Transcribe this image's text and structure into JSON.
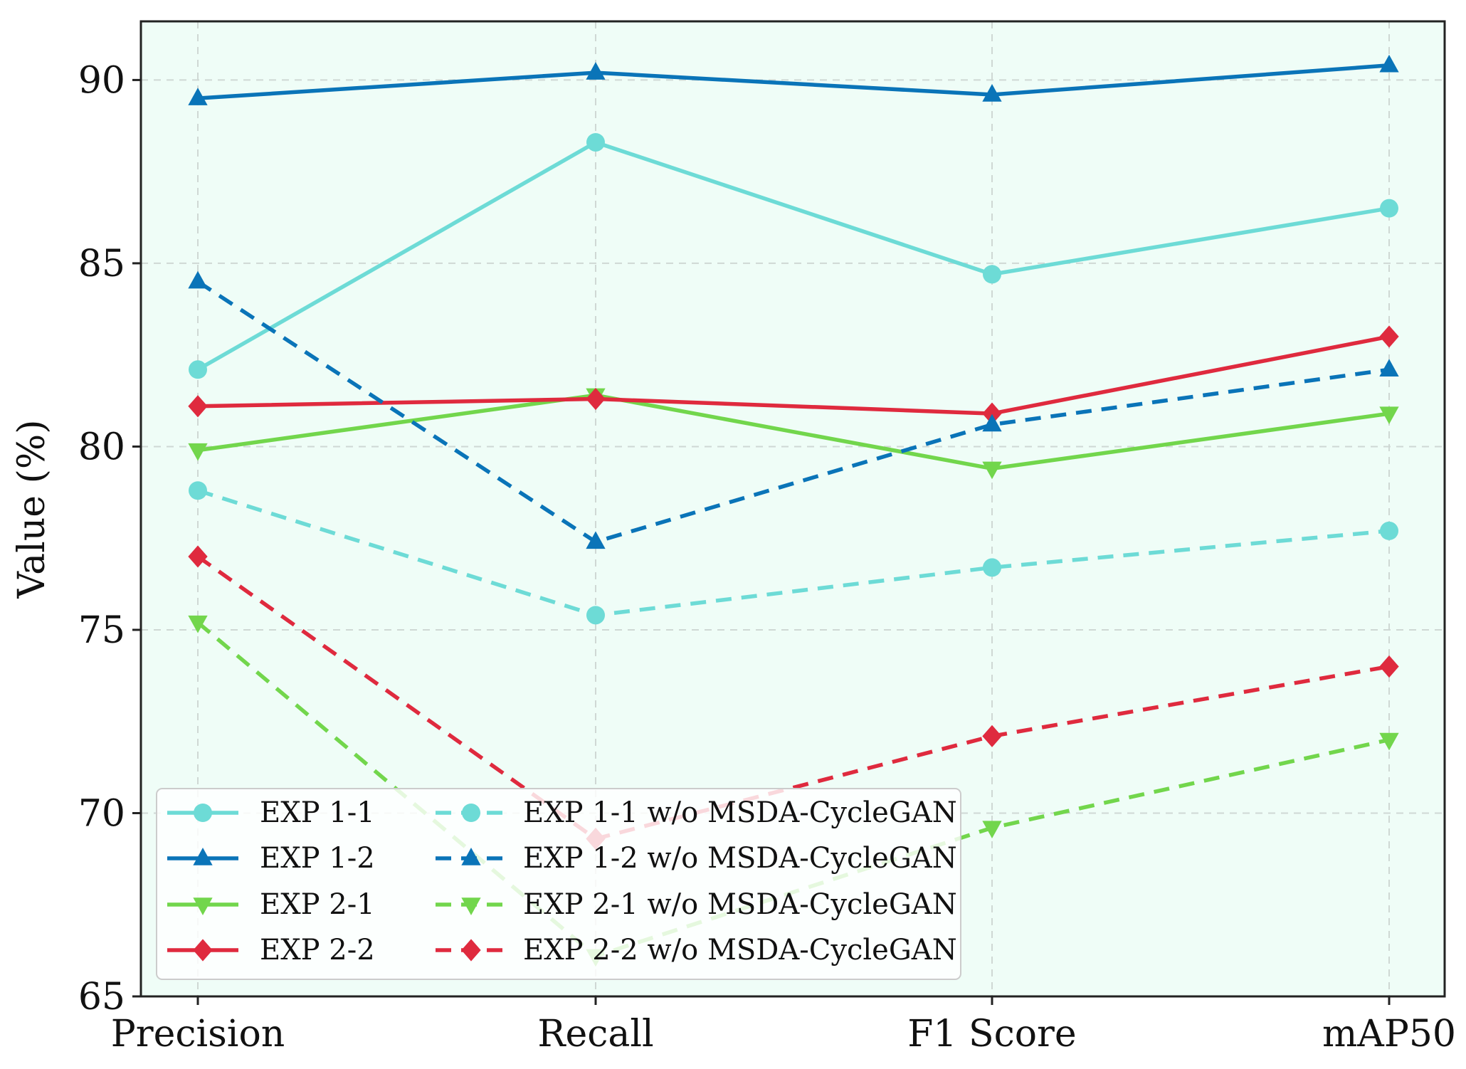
{
  "chart_data": {
    "type": "line",
    "title": "",
    "xlabel": "",
    "ylabel": "Value (%)",
    "categories": [
      "Precision",
      "Recall",
      "F1 Score",
      "mAP50"
    ],
    "ylim": [
      65,
      91.6
    ],
    "yticks": [
      65,
      70,
      75,
      80,
      85,
      90
    ],
    "grid": true,
    "legend_position": "lower-left",
    "colors": {
      "background": "#effdf7",
      "grid": "#cfd8d4",
      "exp11": "#6ddbd6",
      "exp12": "#0a74b8",
      "exp21": "#72d64c",
      "exp22": "#df2a3e"
    },
    "series": [
      {
        "name": "EXP 1-1",
        "values": [
          82.1,
          88.3,
          84.7,
          86.5
        ],
        "color": "#6ddbd6",
        "marker": "circle",
        "style": "solid"
      },
      {
        "name": "EXP 1-2",
        "values": [
          89.5,
          90.2,
          89.6,
          90.4
        ],
        "color": "#0a74b8",
        "marker": "triangle-up",
        "style": "solid"
      },
      {
        "name": "EXP 2-1",
        "values": [
          79.9,
          81.4,
          79.4,
          80.9
        ],
        "color": "#72d64c",
        "marker": "triangle-down",
        "style": "solid"
      },
      {
        "name": "EXP 2-2",
        "values": [
          81.1,
          81.3,
          80.9,
          83.0
        ],
        "color": "#df2a3e",
        "marker": "diamond",
        "style": "solid"
      },
      {
        "name": "EXP 1-1 w/o MSDA-CycleGAN",
        "values": [
          78.8,
          75.4,
          76.7,
          77.7
        ],
        "color": "#6ddbd6",
        "marker": "circle",
        "style": "dashed"
      },
      {
        "name": "EXP 1-2 w/o MSDA-CycleGAN",
        "values": [
          84.5,
          77.4,
          80.6,
          82.1
        ],
        "color": "#0a74b8",
        "marker": "triangle-up",
        "style": "dashed"
      },
      {
        "name": "EXP 2-1 w/o MSDA-CycleGAN",
        "values": [
          75.2,
          66.1,
          69.6,
          72.0
        ],
        "color": "#72d64c",
        "marker": "triangle-down",
        "style": "dashed"
      },
      {
        "name": "EXP 2-2 w/o MSDA-CycleGAN",
        "values": [
          77.0,
          69.3,
          72.1,
          74.0
        ],
        "color": "#df2a3e",
        "marker": "diamond",
        "style": "dashed"
      }
    ]
  }
}
